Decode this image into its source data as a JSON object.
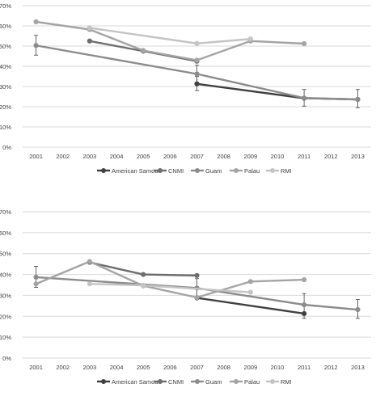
{
  "chart_data": [
    {
      "type": "line",
      "x": [
        "2001",
        "2002",
        "2003",
        "2004",
        "2005",
        "2006",
        "2007",
        "2008",
        "2009",
        "2010",
        "2011",
        "2012",
        "2013"
      ],
      "yticks": [
        "0%",
        "10%",
        "20%",
        "30%",
        "40%",
        "50%",
        "60%",
        "70%"
      ],
      "ylim": [
        0,
        70
      ],
      "grid": true,
      "legend": "bottom",
      "series": [
        {
          "name": "American Samoa",
          "color": "#404040",
          "points": [
            [
              2007,
              31.3
            ],
            [
              2011,
              24.2
            ],
            [
              2013,
              23.6
            ]
          ],
          "error_bars": [
            [
              2007,
              28,
              35
            ],
            [
              2011,
              20.3,
              28.5
            ],
            [
              2013,
              19.5,
              28.5
            ]
          ]
        },
        {
          "name": "CNMI",
          "color": "#6e6e6e",
          "points": [
            [
              2003,
              52.5
            ],
            [
              2005,
              47.5
            ],
            [
              2007,
              42.5
            ]
          ]
        },
        {
          "name": "Guam",
          "color": "#8c8c8c",
          "points": [
            [
              2001,
              50.3
            ],
            [
              2007,
              36.2
            ],
            [
              2011,
              24.3
            ],
            [
              2013,
              23.6
            ]
          ],
          "error_bars": [
            [
              2001,
              45.5,
              55.3
            ],
            [
              2007,
              32,
              40.5
            ]
          ]
        },
        {
          "name": "Palau",
          "color": "#a4a4a4",
          "points": [
            [
              2001,
              62
            ],
            [
              2003,
              58.2
            ],
            [
              2005,
              47.8
            ],
            [
              2007,
              43
            ],
            [
              2009,
              52.5
            ],
            [
              2011,
              51.2
            ]
          ]
        },
        {
          "name": "RMI",
          "color": "#c4c4c4",
          "points": [
            [
              2003,
              59
            ],
            [
              2007,
              51.3
            ],
            [
              2009,
              53.5
            ]
          ]
        }
      ]
    },
    {
      "type": "line",
      "x": [
        "2001",
        "2002",
        "2003",
        "2004",
        "2005",
        "2006",
        "2007",
        "2008",
        "2009",
        "2010",
        "2011",
        "2012",
        "2013"
      ],
      "yticks": [
        "0%",
        "10%",
        "20%",
        "30%",
        "40%",
        "50%",
        "60%",
        "70%"
      ],
      "ylim": [
        0,
        70
      ],
      "grid": true,
      "legend": "bottom",
      "series": [
        {
          "name": "American Samoa",
          "color": "#404040",
          "points": [
            [
              2007,
              28.8
            ],
            [
              2011,
              21.3
            ]
          ],
          "error_bars": [
            [
              2011,
              19,
              30.9
            ]
          ]
        },
        {
          "name": "CNMI",
          "color": "#6e6e6e",
          "points": [
            [
              2003,
              45.8
            ],
            [
              2005,
              40
            ],
            [
              2007,
              39.5
            ]
          ]
        },
        {
          "name": "Guam",
          "color": "#8c8c8c",
          "points": [
            [
              2001,
              38.7
            ],
            [
              2007,
              33.5
            ],
            [
              2011,
              25.5
            ],
            [
              2013,
              23.2
            ]
          ],
          "error_bars": [
            [
              2001,
              33.8,
              43.9
            ],
            [
              2007,
              29,
              38
            ],
            [
              2013,
              19,
              28
            ]
          ]
        },
        {
          "name": "Palau",
          "color": "#a4a4a4",
          "points": [
            [
              2001,
              35.5
            ],
            [
              2003,
              46.2
            ],
            [
              2005,
              34.6
            ],
            [
              2007,
              29
            ],
            [
              2009,
              36.6
            ],
            [
              2011,
              37.5
            ]
          ]
        },
        {
          "name": "RMI",
          "color": "#c4c4c4",
          "points": [
            [
              2003,
              35.5
            ],
            [
              2005,
              34.8
            ],
            [
              2009,
              31.5
            ]
          ]
        }
      ]
    }
  ]
}
